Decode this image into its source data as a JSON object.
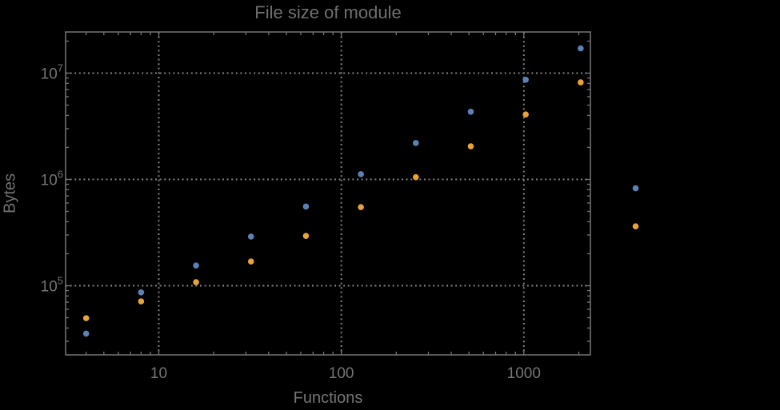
{
  "chart_data": {
    "type": "scatter",
    "scale": "log-log",
    "title": "File size of module",
    "xlabel": "Functions",
    "ylabel": "Bytes",
    "legend": "none",
    "grid": "dotted lines at powers of ten",
    "clipping": false,
    "x": [
      4,
      8,
      16,
      32,
      64,
      128,
      256,
      512,
      1024,
      2048,
      4096
    ],
    "series": [
      {
        "name": "blue",
        "color": "#5b81b6",
        "values": [
          35400,
          86600,
          155000,
          290000,
          556000,
          1120000,
          2200000,
          4330000,
          8660000,
          17100000,
          826000
        ]
      },
      {
        "name": "orange",
        "color": "#e7a33a",
        "values": [
          49500,
          71200,
          108000,
          169000,
          294000,
          549000,
          1050000,
          2050000,
          4090000,
          8180000,
          362000
        ]
      }
    ],
    "xlim_log": [
      0.4894,
      3.3646
    ],
    "ylim_log": [
      4.3496,
      7.3872
    ],
    "x_major_ticks": [
      10,
      100,
      1000
    ],
    "x_major_tick_labels": [
      "10",
      "100",
      "1000"
    ],
    "y_major_ticks_exp": [
      5,
      6,
      7
    ],
    "y_tick_base": "10"
  },
  "style": {
    "background": "#000000",
    "frame_color": "#757575",
    "grid_color": "#828282",
    "tick_label_color": "#747474",
    "title_color": "#6f6f6f",
    "point_radius": 3.8
  }
}
